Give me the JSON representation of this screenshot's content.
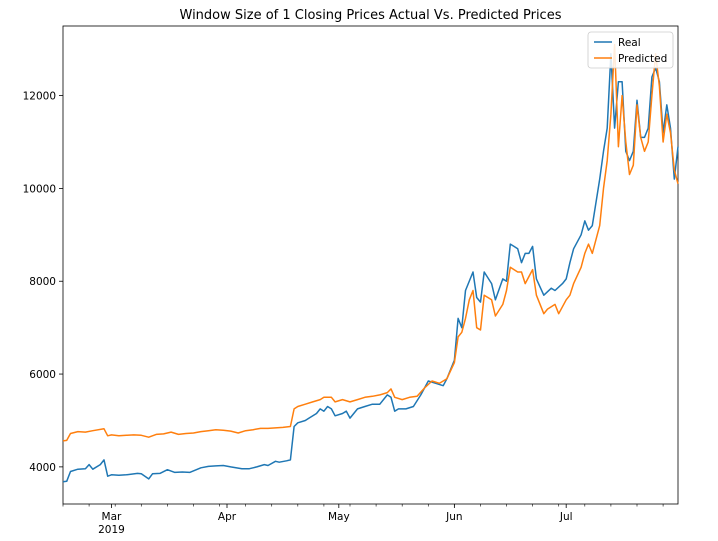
{
  "chart_data": {
    "type": "line",
    "title": "Window Size of 1 Closing Prices Actual Vs. Predicted Prices",
    "xlabel": "",
    "ylabel": "",
    "x_tick_labels": [
      "Mar",
      "Apr",
      "May",
      "Jun",
      "Jul"
    ],
    "x_year_label": "2019",
    "y_tick_labels": [
      "4000",
      "6000",
      "8000",
      "10000",
      "12000"
    ],
    "y_ticks": [
      4000,
      6000,
      8000,
      10000,
      12000
    ],
    "ylim": [
      3200,
      13500
    ],
    "xlim": [
      "2019-02-16",
      "2019-07-31"
    ],
    "grid": false,
    "legend_position": "upper right",
    "series": [
      {
        "name": "Real",
        "color": "#1f77b4",
        "points": [
          [
            "2019-02-16",
            3680
          ],
          [
            "2019-02-17",
            3690
          ],
          [
            "2019-02-18",
            3900
          ],
          [
            "2019-02-20",
            3950
          ],
          [
            "2019-02-22",
            3960
          ],
          [
            "2019-02-23",
            4050
          ],
          [
            "2019-02-24",
            3950
          ],
          [
            "2019-02-26",
            4050
          ],
          [
            "2019-02-27",
            4150
          ],
          [
            "2019-02-28",
            3800
          ],
          [
            "2019-03-01",
            3830
          ],
          [
            "2019-03-03",
            3820
          ],
          [
            "2019-03-05",
            3830
          ],
          [
            "2019-03-08",
            3860
          ],
          [
            "2019-03-09",
            3850
          ],
          [
            "2019-03-11",
            3740
          ],
          [
            "2019-03-12",
            3850
          ],
          [
            "2019-03-14",
            3860
          ],
          [
            "2019-03-16",
            3940
          ],
          [
            "2019-03-18",
            3880
          ],
          [
            "2019-03-20",
            3890
          ],
          [
            "2019-03-22",
            3880
          ],
          [
            "2019-03-25",
            3980
          ],
          [
            "2019-03-27",
            4010
          ],
          [
            "2019-03-29",
            4020
          ],
          [
            "2019-03-31",
            4030
          ],
          [
            "2019-04-02",
            4000
          ],
          [
            "2019-04-05",
            3960
          ],
          [
            "2019-04-07",
            3960
          ],
          [
            "2019-04-09",
            4000
          ],
          [
            "2019-04-11",
            4050
          ],
          [
            "2019-04-12",
            4030
          ],
          [
            "2019-04-14",
            4120
          ],
          [
            "2019-04-15",
            4100
          ],
          [
            "2019-04-17",
            4130
          ],
          [
            "2019-04-18",
            4150
          ],
          [
            "2019-04-19",
            4870
          ],
          [
            "2019-04-20",
            4950
          ],
          [
            "2019-04-22",
            5000
          ],
          [
            "2019-04-23",
            5050
          ],
          [
            "2019-04-25",
            5150
          ],
          [
            "2019-04-26",
            5250
          ],
          [
            "2019-04-27",
            5200
          ],
          [
            "2019-04-28",
            5300
          ],
          [
            "2019-04-29",
            5250
          ],
          [
            "2019-04-30",
            5100
          ],
          [
            "2019-05-02",
            5150
          ],
          [
            "2019-05-03",
            5200
          ],
          [
            "2019-05-04",
            5050
          ],
          [
            "2019-05-06",
            5250
          ],
          [
            "2019-05-08",
            5300
          ],
          [
            "2019-05-10",
            5350
          ],
          [
            "2019-05-12",
            5350
          ],
          [
            "2019-05-14",
            5550
          ],
          [
            "2019-05-15",
            5500
          ],
          [
            "2019-05-16",
            5200
          ],
          [
            "2019-05-17",
            5250
          ],
          [
            "2019-05-19",
            5250
          ],
          [
            "2019-05-21",
            5300
          ],
          [
            "2019-05-23",
            5550
          ],
          [
            "2019-05-25",
            5850
          ],
          [
            "2019-05-27",
            5800
          ],
          [
            "2019-05-29",
            5750
          ],
          [
            "2019-05-30",
            5900
          ],
          [
            "2019-06-01",
            6300
          ],
          [
            "2019-06-02",
            7200
          ],
          [
            "2019-06-03",
            7000
          ],
          [
            "2019-06-04",
            7800
          ],
          [
            "2019-06-06",
            8200
          ],
          [
            "2019-06-07",
            7650
          ],
          [
            "2019-06-08",
            7550
          ],
          [
            "2019-06-09",
            8200
          ],
          [
            "2019-06-11",
            7950
          ],
          [
            "2019-06-12",
            7600
          ],
          [
            "2019-06-14",
            8050
          ],
          [
            "2019-06-15",
            8000
          ],
          [
            "2019-06-16",
            8800
          ],
          [
            "2019-06-17",
            8750
          ],
          [
            "2019-06-18",
            8700
          ],
          [
            "2019-06-19",
            8400
          ],
          [
            "2019-06-20",
            8600
          ],
          [
            "2019-06-21",
            8600
          ],
          [
            "2019-06-22",
            8750
          ],
          [
            "2019-06-23",
            8050
          ],
          [
            "2019-06-25",
            7700
          ],
          [
            "2019-06-27",
            7850
          ],
          [
            "2019-06-28",
            7800
          ],
          [
            "2019-06-30",
            7950
          ],
          [
            "2019-07-01",
            8050
          ],
          [
            "2019-07-02",
            8400
          ],
          [
            "2019-07-03",
            8700
          ],
          [
            "2019-07-05",
            9000
          ],
          [
            "2019-07-06",
            9300
          ],
          [
            "2019-07-07",
            9100
          ],
          [
            "2019-07-08",
            9200
          ],
          [
            "2019-07-10",
            10200
          ],
          [
            "2019-07-11",
            10800
          ],
          [
            "2019-07-12",
            11300
          ],
          [
            "2019-07-13",
            12900
          ],
          [
            "2019-07-14",
            11300
          ],
          [
            "2019-07-15",
            12300
          ],
          [
            "2019-07-16",
            12300
          ],
          [
            "2019-07-17",
            10800
          ],
          [
            "2019-07-18",
            10600
          ],
          [
            "2019-07-19",
            10800
          ],
          [
            "2019-07-20",
            11900
          ],
          [
            "2019-07-21",
            11100
          ],
          [
            "2019-07-22",
            11100
          ],
          [
            "2019-07-23",
            11300
          ],
          [
            "2019-07-24",
            12400
          ],
          [
            "2019-07-25",
            12600
          ],
          [
            "2019-07-26",
            12300
          ],
          [
            "2019-07-27",
            11200
          ],
          [
            "2019-07-28",
            11800
          ],
          [
            "2019-07-29",
            11300
          ],
          [
            "2019-07-30",
            10200
          ],
          [
            "2019-07-31",
            10900
          ]
        ]
      },
      {
        "name": "Predicted",
        "color": "#ff7f0e",
        "points": [
          [
            "2019-02-16",
            4560
          ],
          [
            "2019-02-17",
            4570
          ],
          [
            "2019-02-18",
            4720
          ],
          [
            "2019-02-20",
            4760
          ],
          [
            "2019-02-22",
            4750
          ],
          [
            "2019-02-24",
            4780
          ],
          [
            "2019-02-27",
            4820
          ],
          [
            "2019-02-28",
            4670
          ],
          [
            "2019-03-01",
            4690
          ],
          [
            "2019-03-03",
            4670
          ],
          [
            "2019-03-05",
            4680
          ],
          [
            "2019-03-07",
            4690
          ],
          [
            "2019-03-09",
            4680
          ],
          [
            "2019-03-11",
            4640
          ],
          [
            "2019-03-13",
            4700
          ],
          [
            "2019-03-15",
            4710
          ],
          [
            "2019-03-17",
            4750
          ],
          [
            "2019-03-19",
            4700
          ],
          [
            "2019-03-21",
            4720
          ],
          [
            "2019-03-23",
            4730
          ],
          [
            "2019-03-25",
            4760
          ],
          [
            "2019-03-27",
            4780
          ],
          [
            "2019-03-29",
            4800
          ],
          [
            "2019-03-31",
            4790
          ],
          [
            "2019-04-02",
            4770
          ],
          [
            "2019-04-04",
            4730
          ],
          [
            "2019-04-06",
            4780
          ],
          [
            "2019-04-08",
            4800
          ],
          [
            "2019-04-10",
            4830
          ],
          [
            "2019-04-12",
            4830
          ],
          [
            "2019-04-14",
            4840
          ],
          [
            "2019-04-16",
            4850
          ],
          [
            "2019-04-18",
            4870
          ],
          [
            "2019-04-19",
            5250
          ],
          [
            "2019-04-20",
            5300
          ],
          [
            "2019-04-22",
            5350
          ],
          [
            "2019-04-24",
            5400
          ],
          [
            "2019-04-26",
            5450
          ],
          [
            "2019-04-27",
            5500
          ],
          [
            "2019-04-29",
            5500
          ],
          [
            "2019-04-30",
            5400
          ],
          [
            "2019-05-02",
            5450
          ],
          [
            "2019-05-04",
            5400
          ],
          [
            "2019-05-06",
            5450
          ],
          [
            "2019-05-08",
            5500
          ],
          [
            "2019-05-10",
            5520
          ],
          [
            "2019-05-12",
            5550
          ],
          [
            "2019-05-14",
            5600
          ],
          [
            "2019-05-15",
            5680
          ],
          [
            "2019-05-16",
            5500
          ],
          [
            "2019-05-18",
            5450
          ],
          [
            "2019-05-20",
            5500
          ],
          [
            "2019-05-22",
            5520
          ],
          [
            "2019-05-24",
            5700
          ],
          [
            "2019-05-26",
            5850
          ],
          [
            "2019-05-28",
            5800
          ],
          [
            "2019-05-30",
            5900
          ],
          [
            "2019-06-01",
            6250
          ],
          [
            "2019-06-02",
            6800
          ],
          [
            "2019-06-03",
            6900
          ],
          [
            "2019-06-04",
            7200
          ],
          [
            "2019-06-05",
            7600
          ],
          [
            "2019-06-06",
            7800
          ],
          [
            "2019-06-07",
            7000
          ],
          [
            "2019-06-08",
            6950
          ],
          [
            "2019-06-09",
            7700
          ],
          [
            "2019-06-11",
            7600
          ],
          [
            "2019-06-12",
            7250
          ],
          [
            "2019-06-14",
            7500
          ],
          [
            "2019-06-15",
            7800
          ],
          [
            "2019-06-16",
            8300
          ],
          [
            "2019-06-18",
            8200
          ],
          [
            "2019-06-19",
            8200
          ],
          [
            "2019-06-20",
            7950
          ],
          [
            "2019-06-21",
            8100
          ],
          [
            "2019-06-22",
            8250
          ],
          [
            "2019-06-23",
            7700
          ],
          [
            "2019-06-25",
            7300
          ],
          [
            "2019-06-26",
            7400
          ],
          [
            "2019-06-28",
            7500
          ],
          [
            "2019-06-29",
            7300
          ],
          [
            "2019-07-01",
            7600
          ],
          [
            "2019-07-02",
            7700
          ],
          [
            "2019-07-03",
            7950
          ],
          [
            "2019-07-05",
            8300
          ],
          [
            "2019-07-06",
            8600
          ],
          [
            "2019-07-07",
            8800
          ],
          [
            "2019-07-08",
            8600
          ],
          [
            "2019-07-10",
            9200
          ],
          [
            "2019-07-11",
            10000
          ],
          [
            "2019-07-12",
            10600
          ],
          [
            "2019-07-13",
            11600
          ],
          [
            "2019-07-14",
            13100
          ],
          [
            "2019-07-15",
            10900
          ],
          [
            "2019-07-16",
            12000
          ],
          [
            "2019-07-17",
            11000
          ],
          [
            "2019-07-18",
            10300
          ],
          [
            "2019-07-19",
            10500
          ],
          [
            "2019-07-20",
            11800
          ],
          [
            "2019-07-21",
            11100
          ],
          [
            "2019-07-22",
            10800
          ],
          [
            "2019-07-23",
            11000
          ],
          [
            "2019-07-24",
            12000
          ],
          [
            "2019-07-25",
            12900
          ],
          [
            "2019-07-26",
            12200
          ],
          [
            "2019-07-27",
            11000
          ],
          [
            "2019-07-28",
            11600
          ],
          [
            "2019-07-29",
            11200
          ],
          [
            "2019-07-30",
            10400
          ],
          [
            "2019-07-31",
            10100
          ]
        ]
      }
    ]
  }
}
